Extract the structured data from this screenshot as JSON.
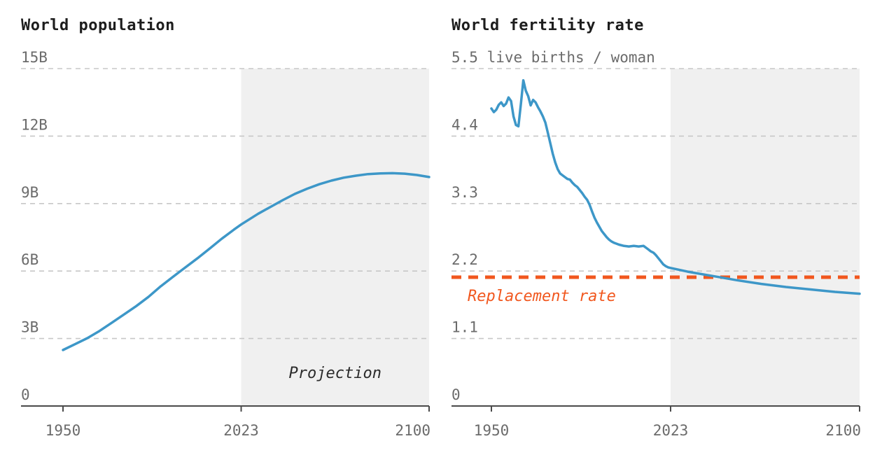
{
  "page": {
    "background": "#ffffff"
  },
  "colors": {
    "title": "#1d1d1d",
    "axis_label": "#6b6b6b",
    "gridline": "#c7c7c7",
    "axis": "#4a4a4a",
    "projection_bg": "#f0f0f0",
    "series_blue": "#3d97c8",
    "replacement_orange": "#f1571e",
    "annotation": "#2b2b2b"
  },
  "chart_data": [
    {
      "type": "line",
      "title": "World population",
      "unit": "billions",
      "xlim": [
        1950,
        2100
      ],
      "ylim": [
        0,
        15
      ],
      "grid": "horizontal-dashed",
      "legend": "none",
      "yticks": [
        [
          0,
          "0"
        ],
        [
          3,
          "3B"
        ],
        [
          6,
          "6B"
        ],
        [
          9,
          "9B"
        ],
        [
          12,
          "12B"
        ],
        [
          15,
          "15B"
        ]
      ],
      "xticks": [
        [
          1950,
          "1950"
        ],
        [
          2023,
          "2023"
        ],
        [
          2100,
          "2100"
        ]
      ],
      "projection_start": 2023,
      "annotations": [
        {
          "text": "Projection",
          "position": "inside-projection-band"
        }
      ],
      "series": [
        {
          "name": "world-population",
          "color": "#3d97c8",
          "points": [
            [
              1950,
              2.49
            ],
            [
              1955,
              2.75
            ],
            [
              1960,
              3.02
            ],
            [
              1965,
              3.34
            ],
            [
              1970,
              3.7
            ],
            [
              1975,
              4.07
            ],
            [
              1980,
              4.44
            ],
            [
              1985,
              4.85
            ],
            [
              1990,
              5.32
            ],
            [
              1995,
              5.74
            ],
            [
              2000,
              6.15
            ],
            [
              2005,
              6.56
            ],
            [
              2010,
              6.99
            ],
            [
              2015,
              7.43
            ],
            [
              2020,
              7.84
            ],
            [
              2023,
              8.07
            ],
            [
              2030,
              8.55
            ],
            [
              2035,
              8.85
            ],
            [
              2040,
              9.15
            ],
            [
              2045,
              9.43
            ],
            [
              2050,
              9.66
            ],
            [
              2055,
              9.86
            ],
            [
              2060,
              10.02
            ],
            [
              2065,
              10.15
            ],
            [
              2070,
              10.24
            ],
            [
              2075,
              10.31
            ],
            [
              2080,
              10.34
            ],
            [
              2085,
              10.35
            ],
            [
              2090,
              10.33
            ],
            [
              2095,
              10.27
            ],
            [
              2100,
              10.18
            ]
          ]
        }
      ]
    },
    {
      "type": "line",
      "title": "World fertility rate",
      "unit": "live births / woman",
      "xlim": [
        1950,
        2100
      ],
      "ylim": [
        0,
        5.5
      ],
      "grid": "horizontal-dashed",
      "legend": "none",
      "yticks": [
        [
          0,
          "0"
        ],
        [
          1.1,
          "1.1"
        ],
        [
          2.2,
          "2.2"
        ],
        [
          3.3,
          "3.3"
        ],
        [
          4.4,
          "4.4"
        ],
        [
          5.5,
          "5.5 live births / woman"
        ]
      ],
      "xticks": [
        [
          1950,
          "1950"
        ],
        [
          2023,
          "2023"
        ],
        [
          2100,
          "2100"
        ]
      ],
      "projection_start": 2023,
      "reference_line": {
        "value": 2.1,
        "label": "Replacement rate",
        "style": "dashed",
        "color": "#f1571e"
      },
      "series": [
        {
          "name": "world-fertility-rate",
          "color": "#3d97c8",
          "points": [
            [
              1950,
              4.85
            ],
            [
              1951,
              4.79
            ],
            [
              1952,
              4.83
            ],
            [
              1953,
              4.91
            ],
            [
              1954,
              4.95
            ],
            [
              1955,
              4.89
            ],
            [
              1956,
              4.93
            ],
            [
              1957,
              5.03
            ],
            [
              1958,
              4.97
            ],
            [
              1959,
              4.72
            ],
            [
              1960,
              4.58
            ],
            [
              1961,
              4.56
            ],
            [
              1962,
              4.92
            ],
            [
              1963,
              5.31
            ],
            [
              1964,
              5.14
            ],
            [
              1965,
              5.05
            ],
            [
              1966,
              4.9
            ],
            [
              1967,
              4.99
            ],
            [
              1968,
              4.95
            ],
            [
              1969,
              4.87
            ],
            [
              1970,
              4.8
            ],
            [
              1971,
              4.72
            ],
            [
              1972,
              4.62
            ],
            [
              1973,
              4.45
            ],
            [
              1974,
              4.28
            ],
            [
              1975,
              4.11
            ],
            [
              1976,
              3.97
            ],
            [
              1977,
              3.86
            ],
            [
              1978,
              3.79
            ],
            [
              1979,
              3.76
            ],
            [
              1980,
              3.73
            ],
            [
              1981,
              3.7
            ],
            [
              1982,
              3.69
            ],
            [
              1983,
              3.64
            ],
            [
              1984,
              3.6
            ],
            [
              1985,
              3.57
            ],
            [
              1986,
              3.52
            ],
            [
              1987,
              3.47
            ],
            [
              1988,
              3.41
            ],
            [
              1989,
              3.36
            ],
            [
              1990,
              3.28
            ],
            [
              1991,
              3.17
            ],
            [
              1992,
              3.07
            ],
            [
              1993,
              2.99
            ],
            [
              1994,
              2.92
            ],
            [
              1995,
              2.85
            ],
            [
              1996,
              2.8
            ],
            [
              1997,
              2.75
            ],
            [
              1998,
              2.71
            ],
            [
              1999,
              2.68
            ],
            [
              2000,
              2.66
            ],
            [
              2002,
              2.63
            ],
            [
              2004,
              2.61
            ],
            [
              2006,
              2.6
            ],
            [
              2008,
              2.61
            ],
            [
              2010,
              2.6
            ],
            [
              2012,
              2.61
            ],
            [
              2013,
              2.58
            ],
            [
              2014,
              2.55
            ],
            [
              2015,
              2.52
            ],
            [
              2016,
              2.5
            ],
            [
              2017,
              2.46
            ],
            [
              2018,
              2.41
            ],
            [
              2019,
              2.36
            ],
            [
              2020,
              2.31
            ],
            [
              2021,
              2.28
            ],
            [
              2022,
              2.26
            ],
            [
              2023,
              2.25
            ],
            [
              2030,
              2.19
            ],
            [
              2040,
              2.12
            ],
            [
              2050,
              2.05
            ],
            [
              2060,
              1.99
            ],
            [
              2070,
              1.94
            ],
            [
              2080,
              1.9
            ],
            [
              2090,
              1.86
            ],
            [
              2100,
              1.83
            ]
          ]
        }
      ]
    }
  ]
}
